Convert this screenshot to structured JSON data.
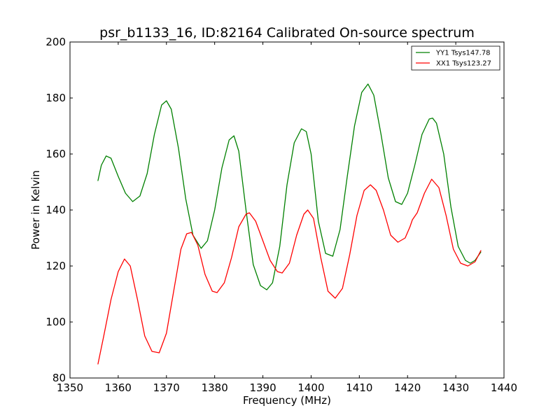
{
  "chart_data": {
    "type": "line",
    "title": "psr_b1133_16, ID:82164 Calibrated On-source spectrum",
    "xlabel": "Frequency (MHz)",
    "ylabel": "Power in Kelvin",
    "xlim": [
      1350,
      1440
    ],
    "ylim": [
      80,
      200
    ],
    "xticks": [
      1350,
      1360,
      1370,
      1380,
      1390,
      1400,
      1410,
      1420,
      1430,
      1440
    ],
    "yticks": [
      80,
      100,
      120,
      140,
      160,
      180,
      200
    ],
    "grid": false,
    "legend_position": "top-right",
    "series": [
      {
        "name": "YY1 Tsys147.78",
        "color": "#008000",
        "x": [
          1355.8,
          1356.5,
          1357.5,
          1358.5,
          1360,
          1361.5,
          1363,
          1364.5,
          1366,
          1367.5,
          1369,
          1370,
          1371,
          1372.5,
          1374,
          1375.5,
          1377.2,
          1378.5,
          1380,
          1381.5,
          1383,
          1384,
          1385,
          1386.5,
          1388,
          1389.5,
          1390.8,
          1392,
          1393.5,
          1395,
          1396.5,
          1398,
          1399,
          1400,
          1401.5,
          1403,
          1404.5,
          1406,
          1407.5,
          1409,
          1410.5,
          1411.8,
          1413,
          1414.5,
          1416,
          1417.5,
          1418.8,
          1420,
          1421.5,
          1423,
          1424.5,
          1425.2,
          1426,
          1427.5,
          1429,
          1430.5,
          1432,
          1433,
          1434,
          1435.2
        ],
        "y": [
          150.5,
          156,
          159.3,
          158.5,
          152,
          146,
          143,
          145,
          153,
          167,
          177.5,
          179,
          176,
          162,
          144,
          131,
          126.3,
          129,
          140,
          155,
          165,
          166.5,
          161,
          140,
          120.5,
          113,
          111.5,
          114,
          127,
          149,
          164,
          169,
          168,
          160,
          136,
          124.5,
          123.5,
          133,
          152,
          170,
          182,
          185,
          181,
          167,
          151.5,
          143,
          142,
          146,
          156,
          167,
          172.5,
          172.8,
          171,
          160,
          141,
          127,
          122,
          121,
          122,
          125
        ]
      },
      {
        "name": "XX1 Tsys123.27",
        "color": "#ff0000",
        "x": [
          1355.8,
          1357,
          1358.5,
          1360,
          1361.3,
          1362.5,
          1364,
          1365.5,
          1367,
          1368.5,
          1370,
          1371.5,
          1373,
          1374.2,
          1375.2,
          1376.5,
          1378,
          1379.5,
          1380.5,
          1382,
          1383.5,
          1385,
          1386.5,
          1387.2,
          1388.5,
          1390,
          1391.5,
          1393,
          1394,
          1395.5,
          1397,
          1398.5,
          1399.3,
          1400.5,
          1402,
          1403.5,
          1405,
          1406.5,
          1408,
          1409.5,
          1411,
          1412.3,
          1413.5,
          1415,
          1416.5,
          1418,
          1419.5,
          1420.5,
          1421,
          1422,
          1423.5,
          1425,
          1426.5,
          1428,
          1429.5,
          1431,
          1432.5,
          1434,
          1435.2
        ],
        "y": [
          85,
          95,
          108,
          118,
          122.5,
          120,
          108,
          95,
          89.5,
          89,
          96,
          111,
          126,
          131.5,
          132,
          127.5,
          117,
          111,
          110.5,
          114,
          123,
          134,
          138.5,
          139,
          136,
          129,
          122,
          118,
          117.5,
          121,
          131,
          138.5,
          140,
          137,
          123,
          111,
          108.5,
          112,
          124,
          138,
          147,
          149,
          147,
          140,
          131,
          128.5,
          130,
          134,
          136.5,
          139,
          146,
          151,
          148,
          138,
          126,
          121,
          120,
          121.5,
          125.5
        ]
      }
    ]
  }
}
